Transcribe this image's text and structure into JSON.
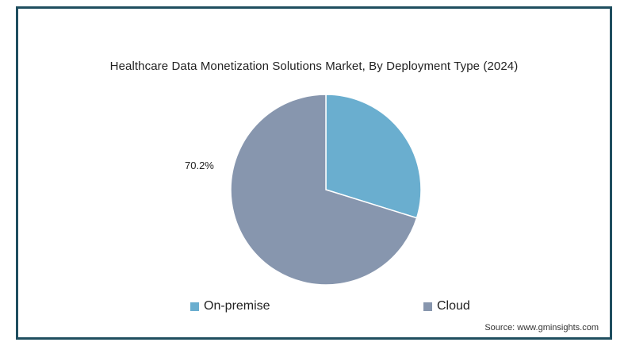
{
  "chart_data": {
    "type": "pie",
    "title": "Healthcare Data Monetization Solutions Market, By Deployment Type (2024)",
    "categories": [
      "On-premise",
      "Cloud"
    ],
    "values": [
      29.8,
      70.2
    ],
    "data_labels": [
      "",
      "70.2%"
    ],
    "colors": [
      "#6aaecf",
      "#8796ae"
    ],
    "legend": "bottom"
  },
  "source": "Source: www.gminsights.com"
}
